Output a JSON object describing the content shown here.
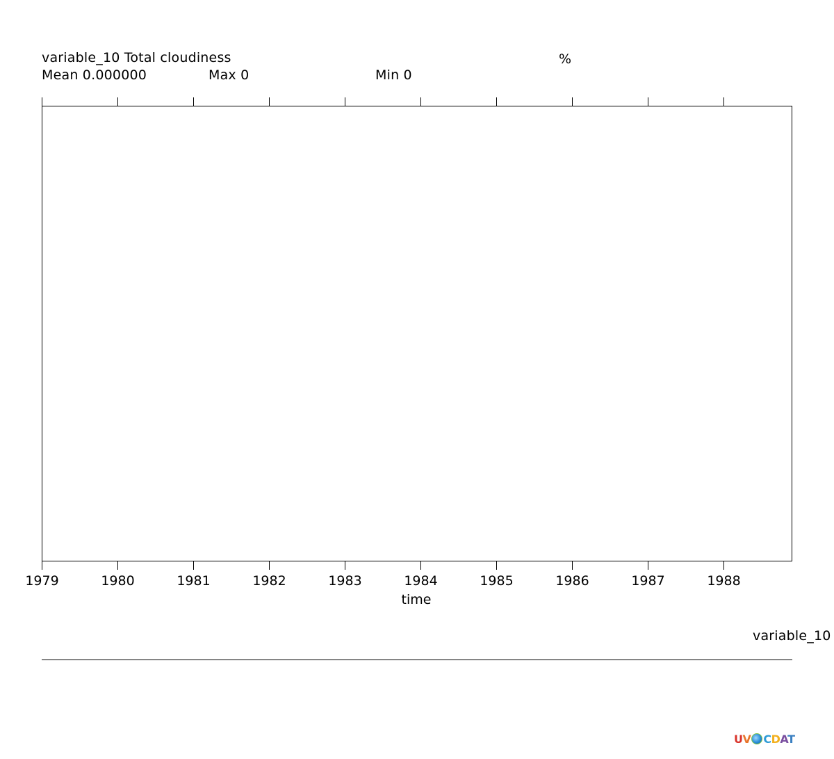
{
  "header": {
    "variable_title": "variable_10 Total cloudiness",
    "units": "%",
    "mean_label": "Mean 0.000000",
    "max_label": "Max 0",
    "min_label": "Min 0"
  },
  "footer": {
    "legend_label": "variable_10",
    "logo": {
      "letters_before": "UV",
      "letters_after": "CDAT",
      "colors": {
        "U": "#d9342b",
        "V": "#e8762c",
        "C": "#2e9bd6",
        "D": "#f2b01e",
        "A": "#7a4fa0",
        "T": "#3a7fc1"
      }
    }
  },
  "chart_data": {
    "type": "line",
    "xlabel": "time",
    "ylabel": "",
    "tick_labels": [
      "1979",
      "1980",
      "1981",
      "1982",
      "1983",
      "1984",
      "1985",
      "1986",
      "1987",
      "1988"
    ],
    "xlim": [
      1979,
      1988.9
    ],
    "series": [],
    "grid": false
  }
}
